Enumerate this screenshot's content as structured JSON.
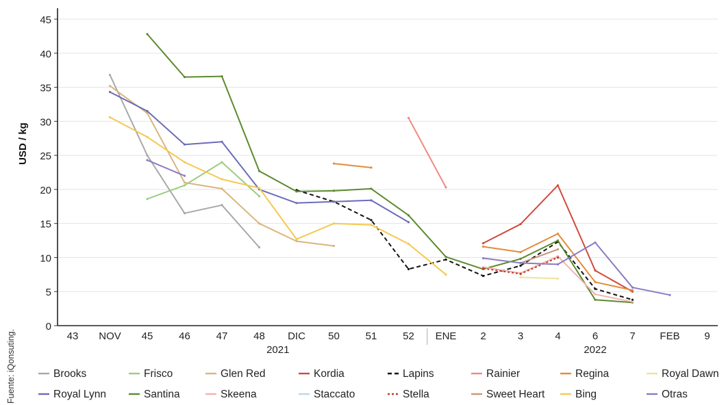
{
  "chart_data": {
    "type": "line",
    "ylabel": "USD / kg",
    "ylim": [
      0,
      45
    ],
    "yticks": [
      0,
      5,
      10,
      15,
      20,
      25,
      30,
      35,
      40,
      45
    ],
    "grid": "horizontal",
    "categories": [
      "43",
      "NOV",
      "45",
      "46",
      "47",
      "48",
      "DIC",
      "50",
      "51",
      "52",
      "ENE",
      "2",
      "3",
      "4",
      "6",
      "7",
      "FEB",
      "9"
    ],
    "year_labels": [
      {
        "text": "2021",
        "center_index": 5.5
      },
      {
        "text": "2022",
        "center_index": 14
      }
    ],
    "year_separator_after_index": 9.5,
    "source": "Fuente: iQonsuting.",
    "legend_position": "bottom",
    "series": [
      {
        "name": "Brooks",
        "color": "#a8a8a8",
        "dash": "",
        "values": [
          null,
          36.8,
          25.0,
          16.5,
          17.7,
          11.5,
          null,
          null,
          null,
          null,
          null,
          null,
          null,
          null,
          null,
          null,
          null,
          null
        ]
      },
      {
        "name": "Frisco",
        "color": "#9ccc7e",
        "dash": "",
        "values": [
          null,
          null,
          18.6,
          20.6,
          24.0,
          19.0,
          null,
          null,
          null,
          null,
          null,
          null,
          null,
          null,
          null,
          null,
          null,
          null
        ]
      },
      {
        "name": "Glen Red",
        "color": "#d9b57c",
        "dash": "",
        "values": [
          null,
          35.2,
          31.2,
          21.0,
          20.1,
          15.0,
          12.4,
          11.7,
          null,
          null,
          null,
          null,
          null,
          null,
          null,
          null,
          null,
          null
        ]
      },
      {
        "name": "Kordia",
        "color": "#d04a3a",
        "dash": "",
        "values": [
          null,
          null,
          null,
          null,
          null,
          null,
          null,
          null,
          null,
          null,
          null,
          12.1,
          14.9,
          20.6,
          8.1,
          5.0,
          null,
          null
        ]
      },
      {
        "name": "Lapins",
        "color": "#111111",
        "dash": "6,4",
        "values": [
          null,
          null,
          null,
          null,
          null,
          null,
          19.9,
          18.2,
          15.5,
          8.3,
          9.7,
          7.3,
          8.8,
          12.3,
          5.4,
          3.8,
          null,
          null
        ]
      },
      {
        "name": "Rainier",
        "color": "#ef8a80",
        "dash": "",
        "values": [
          null,
          null,
          null,
          null,
          null,
          null,
          null,
          null,
          null,
          30.5,
          20.3,
          null,
          null,
          null,
          null,
          null,
          null,
          null
        ]
      },
      {
        "name": "Regina",
        "color": "#e38a3e",
        "dash": "",
        "values": [
          null,
          null,
          null,
          null,
          null,
          null,
          null,
          23.8,
          23.2,
          null,
          null,
          11.6,
          10.8,
          13.5,
          6.4,
          5.2,
          null,
          null
        ]
      },
      {
        "name": "Royal Dawn",
        "color": "#f0e29a",
        "dash": "",
        "values": [
          null,
          null,
          null,
          null,
          null,
          null,
          null,
          null,
          null,
          null,
          null,
          null,
          7.1,
          6.9,
          null,
          null,
          null,
          null
        ]
      },
      {
        "name": "Royal Lynn",
        "color": "#6b6bb8",
        "dash": "",
        "values": [
          null,
          34.3,
          31.5,
          26.6,
          27.0,
          20.0,
          18.0,
          18.2,
          18.4,
          15.2,
          null,
          null,
          null,
          null,
          null,
          null,
          null,
          null
        ]
      },
      {
        "name": "Santina",
        "color": "#5b8a2e",
        "dash": "",
        "values": [
          null,
          null,
          42.8,
          36.5,
          36.6,
          22.7,
          19.7,
          19.8,
          20.1,
          16.2,
          10.1,
          8.3,
          9.8,
          12.5,
          3.8,
          3.4,
          null,
          null
        ]
      },
      {
        "name": "Skeena",
        "color": "#f2b3ad",
        "dash": "",
        "values": [
          null,
          null,
          null,
          null,
          null,
          null,
          null,
          null,
          null,
          null,
          null,
          8.6,
          7.7,
          10.2,
          4.6,
          3.5,
          null,
          null
        ]
      },
      {
        "name": "Staccato",
        "color": "#bcd6ea",
        "dash": "",
        "values": [
          null,
          null,
          null,
          null,
          null,
          null,
          null,
          null,
          null,
          null,
          null,
          null,
          null,
          null,
          null,
          null,
          null,
          null
        ]
      },
      {
        "name": "Stella",
        "color": "#c0392b",
        "dash": "3,3",
        "values": [
          null,
          null,
          null,
          null,
          null,
          null,
          null,
          null,
          null,
          null,
          null,
          8.4,
          7.6,
          10.0,
          null,
          null,
          null,
          null
        ]
      },
      {
        "name": "Sweet Heart",
        "color": "#c9967a",
        "dash": "",
        "values": [
          null,
          null,
          null,
          null,
          null,
          null,
          null,
          null,
          null,
          null,
          null,
          null,
          9.2,
          11.2,
          null,
          null,
          null,
          null
        ]
      },
      {
        "name": "Bing",
        "color": "#f5c850",
        "dash": "",
        "values": [
          null,
          30.6,
          27.7,
          24.0,
          21.5,
          20.2,
          12.7,
          15.0,
          14.8,
          12.0,
          7.5,
          null,
          null,
          null,
          null,
          null,
          null,
          null
        ]
      },
      {
        "name": "Otras",
        "color": "#8a7ac4",
        "dash": "",
        "values": [
          null,
          null,
          24.3,
          22.0,
          null,
          null,
          null,
          null,
          null,
          null,
          null,
          9.9,
          9.2,
          9.0,
          12.2,
          5.6,
          4.5,
          null
        ]
      }
    ]
  }
}
